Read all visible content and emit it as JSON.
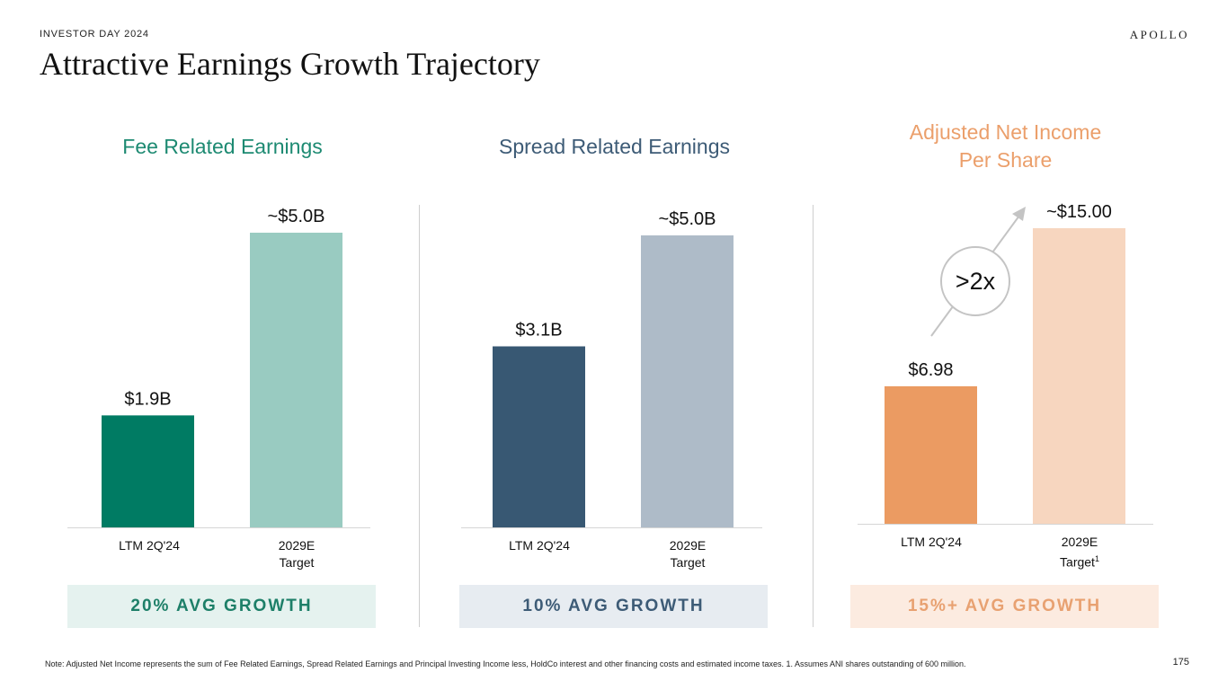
{
  "header": {
    "eyebrow": "INVESTOR DAY 2024",
    "title": "Attractive Earnings Growth Trajectory",
    "logo": "APOLLO"
  },
  "chart_data": [
    {
      "type": "bar",
      "title": "Fee Related Earnings",
      "categories": [
        "LTM 2Q'24",
        "2029E Target"
      ],
      "category_lines": [
        [
          "LTM 2Q'24"
        ],
        [
          "2029E",
          "Target"
        ]
      ],
      "values": [
        1.9,
        5.0
      ],
      "data_labels": [
        "$1.9B",
        "~$5.0B"
      ],
      "unit": "$B",
      "ylim": [
        0,
        5.0
      ],
      "colors": [
        "#007B63",
        "#99CBC1"
      ],
      "title_color": "#1D8A72",
      "growth": "20% AVG GROWTH",
      "growth_color": "#1D7F68",
      "growth_bg": "#E5F2EF",
      "footnote_marker": ""
    },
    {
      "type": "bar",
      "title": "Spread Related Earnings",
      "categories": [
        "LTM 2Q'24",
        "2029E Target"
      ],
      "category_lines": [
        [
          "LTM 2Q'24"
        ],
        [
          "2029E",
          "Target"
        ]
      ],
      "values": [
        3.1,
        5.0
      ],
      "data_labels": [
        "$3.1B",
        "~$5.0B"
      ],
      "unit": "$B",
      "ylim": [
        0,
        5.0
      ],
      "colors": [
        "#385873",
        "#AEBBC8"
      ],
      "title_color": "#3D5B76",
      "growth": "10% AVG GROWTH",
      "growth_color": "#3D5B76",
      "growth_bg": "#E7ECF1",
      "footnote_marker": ""
    },
    {
      "type": "bar",
      "title": "Adjusted Net Income Per Share",
      "title_lines": [
        "Adjusted Net Income",
        "Per Share"
      ],
      "categories": [
        "LTM 2Q'24",
        "2029E Target"
      ],
      "category_lines": [
        [
          "LTM 2Q'24"
        ],
        [
          "2029E",
          "Target"
        ]
      ],
      "values": [
        6.98,
        15.0
      ],
      "data_labels": [
        "$6.98",
        "~$15.00"
      ],
      "unit": "$ per share",
      "ylim": [
        0,
        15.0
      ],
      "colors": [
        "#EB9B62",
        "#F7D6BF"
      ],
      "title_color": "#EB9F6B",
      "growth": "15%+ AVG GROWTH",
      "growth_color": "#E8A171",
      "growth_bg": "#FCEBE0",
      "footnote_marker": "1",
      "annotation": ">2x"
    }
  ],
  "footer": {
    "note": "Note: Adjusted Net Income represents the sum of Fee Related Earnings, Spread Related Earnings and Principal Investing Income less, HoldCo interest and other financing costs and estimated income taxes. 1. Assumes ANI shares outstanding of 600 million.",
    "page_number": "175"
  }
}
